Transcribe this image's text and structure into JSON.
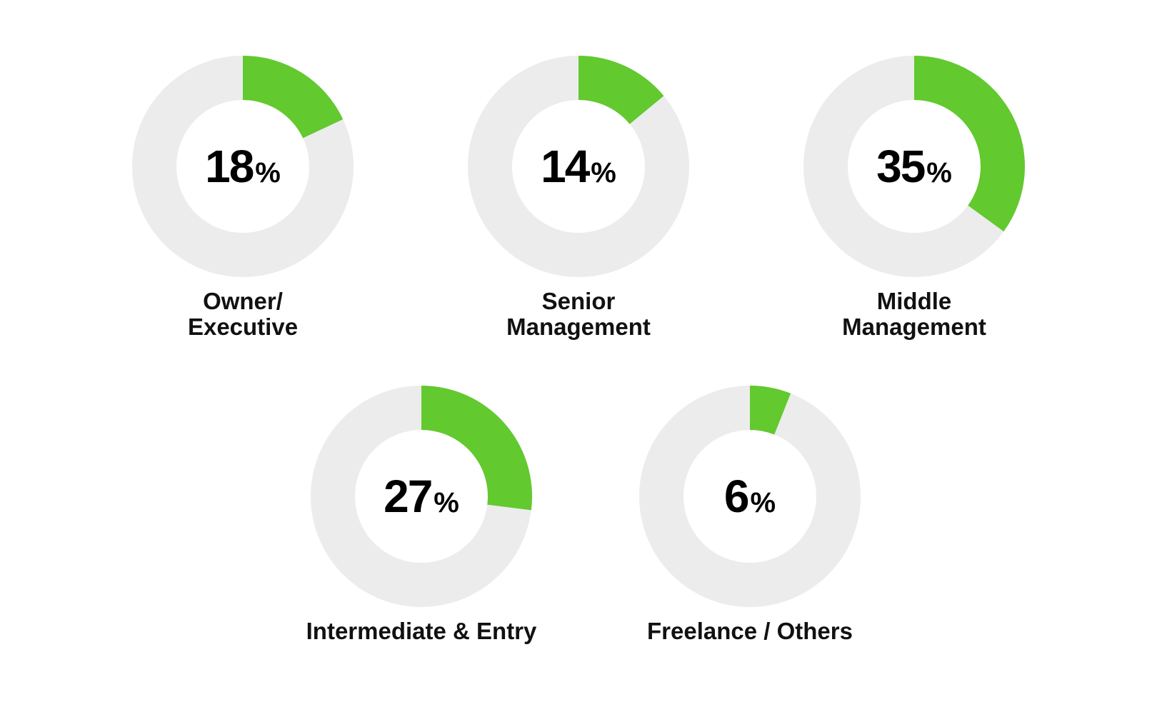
{
  "chart_data": {
    "type": "pie",
    "variant": "donut",
    "title": "",
    "colors": {
      "filled": "#62c92e",
      "track": "#ececec",
      "text": "#000000"
    },
    "unit_suffix": "%",
    "items": [
      {
        "label_lines": [
          "Owner/",
          "Executive"
        ],
        "value": 18
      },
      {
        "label_lines": [
          "Senior",
          "Management"
        ],
        "value": 14
      },
      {
        "label_lines": [
          "Middle",
          "Management"
        ],
        "value": 35
      },
      {
        "label_lines": [
          "Intermediate & Entry"
        ],
        "value": 27
      },
      {
        "label_lines": [
          "Freelance / Others"
        ],
        "value": 6
      }
    ]
  }
}
